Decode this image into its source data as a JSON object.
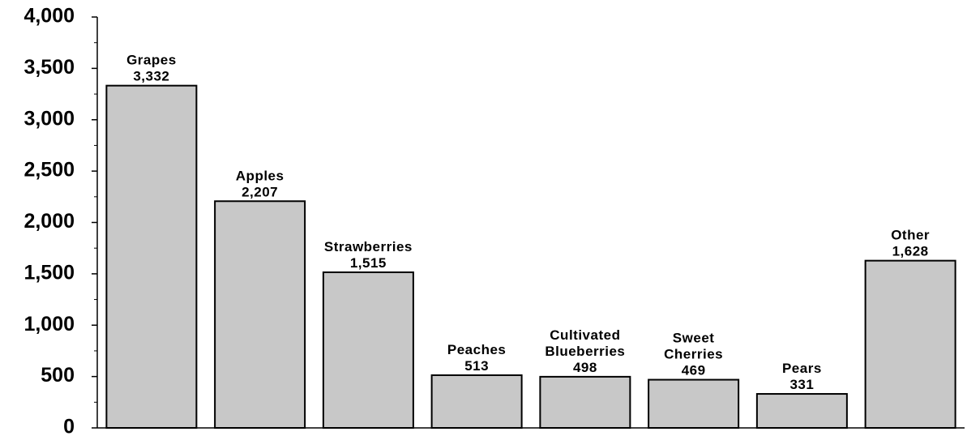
{
  "chart_data": {
    "type": "bar",
    "categories": [
      "Grapes",
      "Apples",
      "Strawberries",
      "Peaches",
      "Cultivated Blueberries",
      "Sweet Cherries",
      "Pears",
      "Other"
    ],
    "values": [
      3332,
      2207,
      1515,
      513,
      498,
      469,
      331,
      1628
    ],
    "value_labels": [
      "3,332",
      "2,207",
      "1,515",
      "513",
      "498",
      "469",
      "331",
      "1,628"
    ],
    "color": "#c8c8c8",
    "ylim": [
      0,
      4000
    ],
    "yticks": [
      0,
      500,
      {
        "value": 1000,
        "label": "1,000"
      },
      {
        "value": 1500,
        "label": "1,500"
      },
      {
        "value": 2000,
        "label": "2,000"
      },
      {
        "value": 2500,
        "label": "2,500"
      },
      {
        "value": 3000,
        "label": "3,000"
      },
      {
        "value": 3500,
        "label": "3,500"
      },
      {
        "value": 4000,
        "label": "4,000"
      }
    ],
    "yticks_minor": [
      250,
      750,
      1250,
      1750,
      2250,
      2750,
      3250,
      3750
    ],
    "grid": false
  }
}
